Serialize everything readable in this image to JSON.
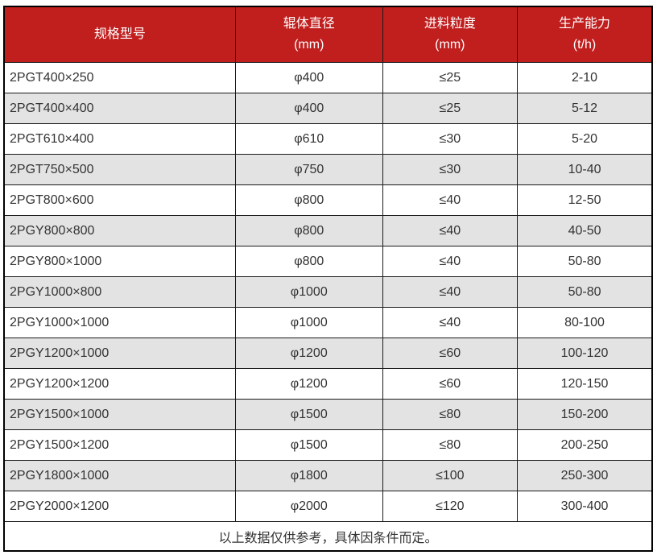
{
  "colors": {
    "header_bg": "#c11e1e",
    "header_text": "#ffffff",
    "row_alt_bg": "#e3e3e3",
    "body_text": "#333333",
    "border": "#1a1a1a"
  },
  "table": {
    "header": {
      "model": "规格型号",
      "diameter_title": "辊体直径",
      "diameter_unit": "(mm)",
      "feed_title": "进料粒度",
      "feed_unit": "(mm)",
      "capacity_title": "生产能力",
      "capacity_unit": "(t/h)"
    },
    "rows": [
      {
        "model": "2PGT400×250",
        "diameter": "φ400",
        "feed": "≤25",
        "capacity": "2-10"
      },
      {
        "model": "2PGT400×400",
        "diameter": "φ400",
        "feed": "≤25",
        "capacity": "5-12"
      },
      {
        "model": "2PGT610×400",
        "diameter": "φ610",
        "feed": "≤30",
        "capacity": "5-20"
      },
      {
        "model": "2PGT750×500",
        "diameter": "φ750",
        "feed": "≤30",
        "capacity": "10-40"
      },
      {
        "model": "2PGT800×600",
        "diameter": "φ800",
        "feed": "≤40",
        "capacity": "12-50"
      },
      {
        "model": "2PGY800×800",
        "diameter": "φ800",
        "feed": "≤40",
        "capacity": "40-50"
      },
      {
        "model": "2PGY800×1000",
        "diameter": "φ800",
        "feed": "≤40",
        "capacity": "50-80"
      },
      {
        "model": "2PGY1000×800",
        "diameter": "φ1000",
        "feed": "≤40",
        "capacity": "50-80"
      },
      {
        "model": "2PGY1000×1000",
        "diameter": "φ1000",
        "feed": "≤40",
        "capacity": "80-100"
      },
      {
        "model": "2PGY1200×1000",
        "diameter": "φ1200",
        "feed": "≤60",
        "capacity": "100-120"
      },
      {
        "model": "2PGY1200×1200",
        "diameter": "φ1200",
        "feed": "≤60",
        "capacity": "120-150"
      },
      {
        "model": "2PGY1500×1000",
        "diameter": "φ1500",
        "feed": "≤80",
        "capacity": "150-200"
      },
      {
        "model": "2PGY1500×1200",
        "diameter": "φ1500",
        "feed": "≤80",
        "capacity": "200-250"
      },
      {
        "model": "2PGY1800×1000",
        "diameter": "φ1800",
        "feed": "≤100",
        "capacity": "250-300"
      },
      {
        "model": "2PGY2000×1200",
        "diameter": "φ2000",
        "feed": "≤120",
        "capacity": "300-400"
      }
    ],
    "footer_note": "以上数据仅供参考，具体因条件而定。"
  }
}
